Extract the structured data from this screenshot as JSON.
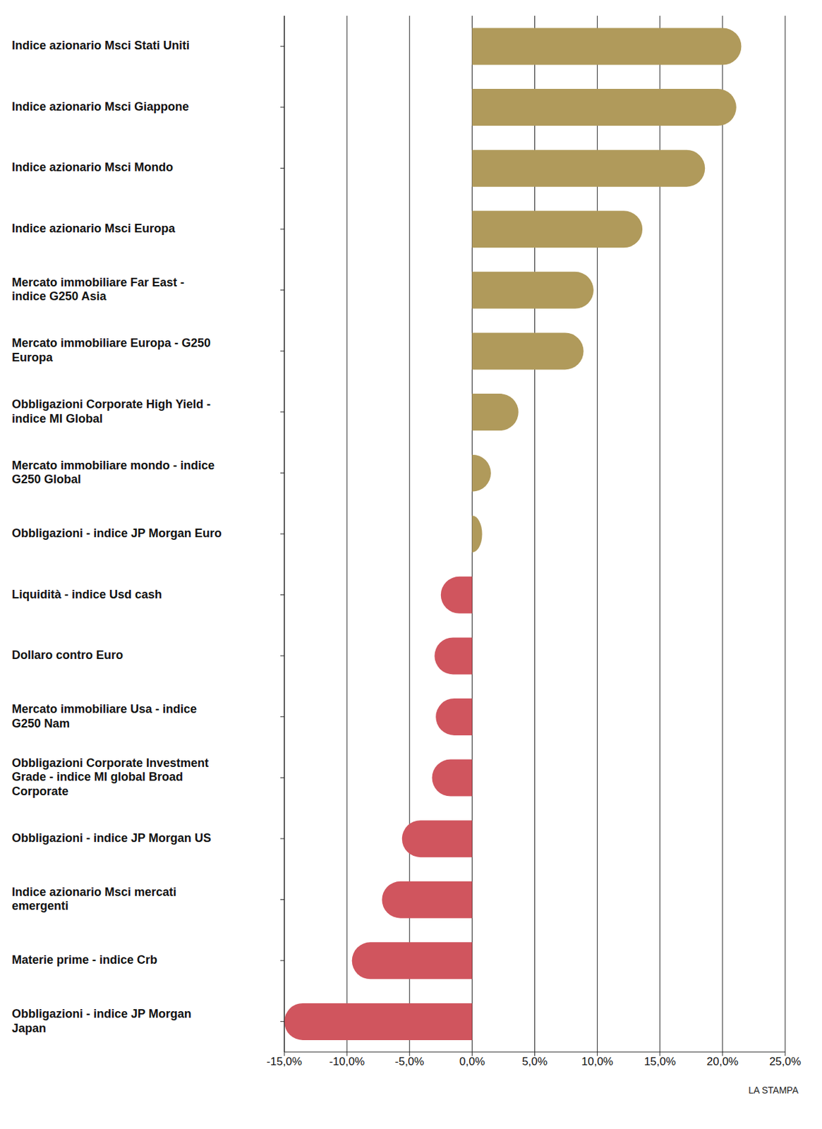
{
  "chart_data": {
    "type": "bar",
    "orientation": "horizontal",
    "categories": [
      "Indice azionario Msci Stati Uniti",
      "Indice azionario Msci Giappone",
      "Indice azionario Msci Mondo",
      "Indice azionario Msci Europa",
      "Mercato immobiliare Far East - indice G250 Asia",
      "Mercato immobiliare Europa - G250 Europa",
      "Obbligazioni Corporate High Yield - indice MI Global",
      "Mercato immobiliare mondo - indice G250 Global",
      "Obbligazioni - indice JP Morgan Euro",
      "Liquidità - indice Usd cash",
      "Dollaro contro Euro",
      "Mercato immobiliare Usa - indice G250 Nam",
      "Obbligazioni Corporate Investment Grade - indice MI global Broad Corporate",
      "Obbligazioni - indice JP Morgan US",
      "Indice azionario Msci mercati emergenti",
      "Materie prime - indice Crb",
      "Obbligazioni - indice JP Morgan Japan"
    ],
    "values": [
      21.5,
      21.1,
      18.6,
      13.6,
      9.7,
      8.9,
      3.7,
      1.5,
      0.8,
      -2.5,
      -3.0,
      -2.9,
      -3.2,
      -5.6,
      -7.2,
      -9.6,
      -15.0
    ],
    "colors": [
      "#b09a5b",
      "#b09a5b",
      "#b09a5b",
      "#b09a5b",
      "#b09a5b",
      "#b09a5b",
      "#b09a5b",
      "#b09a5b",
      "#b09a5b",
      "#d0555e",
      "#d0555e",
      "#d0555e",
      "#d0555e",
      "#d0555e",
      "#d0555e",
      "#d0555e",
      "#d0555e"
    ],
    "xlim": [
      -15,
      25
    ],
    "xticks": [
      {
        "value": -15,
        "label": "-15,0%"
      },
      {
        "value": -10,
        "label": "-10,0%"
      },
      {
        "value": -5,
        "label": "-5,0%"
      },
      {
        "value": 0,
        "label": "0,0%"
      },
      {
        "value": 5,
        "label": "5,0%"
      },
      {
        "value": 10,
        "label": "10,0%"
      },
      {
        "value": 15,
        "label": "15,0%"
      },
      {
        "value": 20,
        "label": "20,0%"
      },
      {
        "value": 25,
        "label": "25,0%"
      }
    ],
    "grid": true,
    "source": "LA STAMPA"
  }
}
